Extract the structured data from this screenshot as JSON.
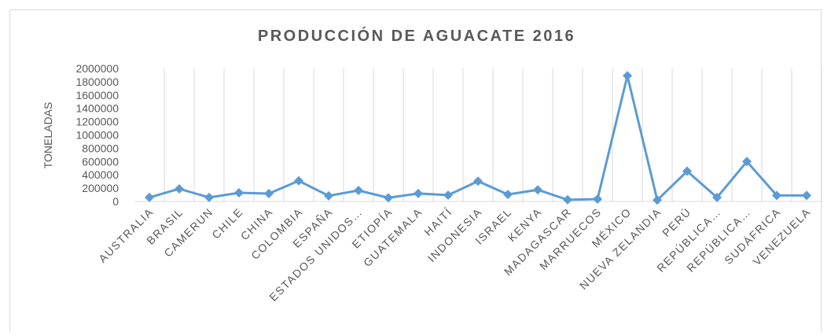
{
  "chart_data": {
    "type": "line",
    "title": "PRODUCCIÓN DE AGUACATE 2016",
    "y_label": "TONELADAS",
    "categories": [
      "AUSTRALIA",
      "BRASIL",
      "CAMERUN",
      "CHILE",
      "CHINA",
      "COLOMBIA",
      "ESPAÑA",
      "ESTADOS UNIDOS…",
      "ETIOPÍA",
      "GUATEMALA",
      "HAITÍ",
      "INDONESIA",
      "ISRAEL",
      "KENYA",
      "MADAGASCAR",
      "MARRUECOS",
      "MÉXICO",
      "NUEVA ZELANDIA",
      "PERÚ",
      "REPÚBLICA…",
      "REPÚBLICA…",
      "SUDÁFRICA",
      "VENEZUELA"
    ],
    "series": [
      {
        "name": "TONELADAS",
        "color": "#5b9bd5",
        "values": [
          60000,
          190000,
          60000,
          130000,
          118000,
          310000,
          85000,
          165000,
          55000,
          120000,
          95000,
          305000,
          105000,
          175000,
          25000,
          35000,
          1890000,
          20000,
          455000,
          60000,
          600000,
          90000,
          90000
        ]
      }
    ],
    "ylim": [
      0,
      2000000
    ],
    "yticks": [
      0,
      200000,
      400000,
      600000,
      800000,
      1000000,
      1200000,
      1400000,
      1600000,
      1800000,
      2000000
    ],
    "grid": "vertical"
  }
}
